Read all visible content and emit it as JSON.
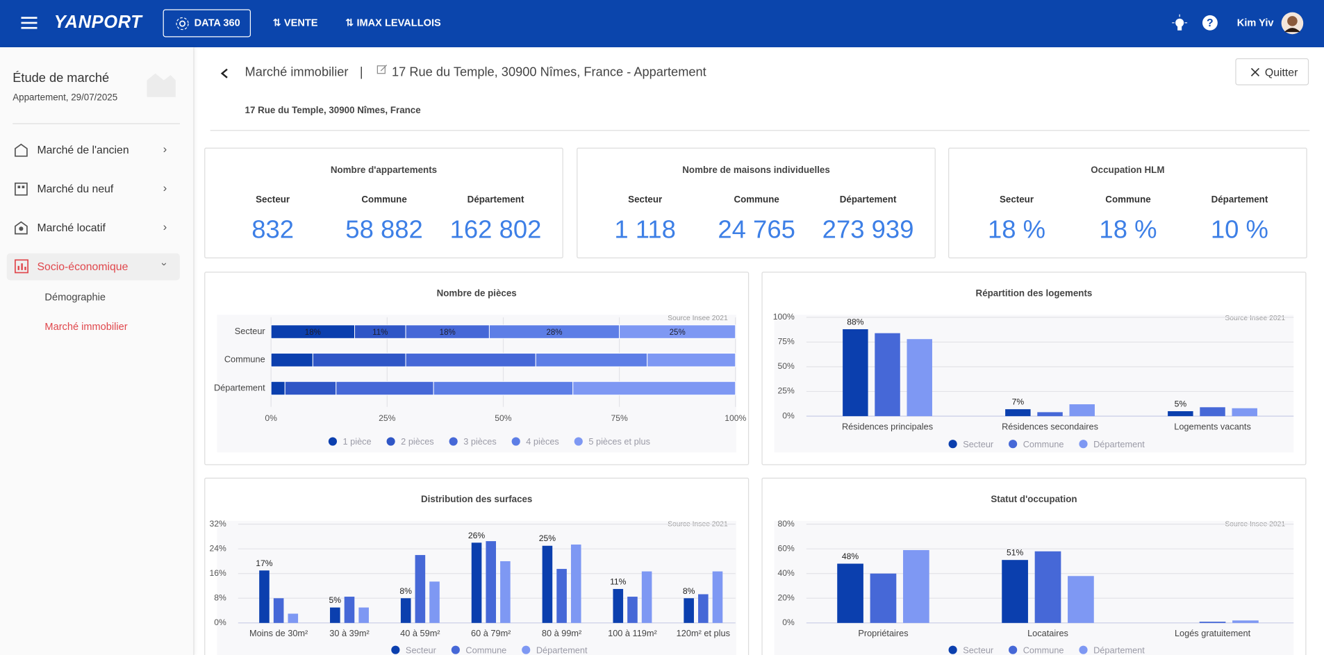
{
  "header": {
    "logo": "YANPORT",
    "buttons": [
      "DATA 360",
      "VENTE",
      "IMAX LEVALLOIS"
    ],
    "user": "Kim Yiv"
  },
  "sidebar": {
    "title": "Étude de marché",
    "subtitle": "Appartement, 29/07/2025",
    "menu": [
      "Marché de l'ancien",
      "Marché du neuf",
      "Marché locatif",
      "Socio-économique"
    ],
    "submenu": [
      "Démographie",
      "Marché immobilier"
    ]
  },
  "page": {
    "back_title": "Marché immobilier",
    "separator": "|",
    "title": "17 Rue du Temple, 30900 Nîmes, France - Appartement",
    "address": "17 Rue du Temple, 30900 Nîmes, France",
    "quit": "Quitter"
  },
  "stats": [
    {
      "title": "Nombre d'appartements",
      "columns": [
        "Secteur",
        "Commune",
        "Département"
      ],
      "values": [
        "832",
        "58 882",
        "162 802"
      ]
    },
    {
      "title": "Nombre de maisons individuelles",
      "columns": [
        "Secteur",
        "Commune",
        "Département"
      ],
      "values": [
        "1 118",
        "24 765",
        "273 939"
      ]
    },
    {
      "title": "Occupation HLM",
      "columns": [
        "Secteur",
        "Commune",
        "Département"
      ],
      "values": [
        "18 %",
        "18 %",
        "10 %"
      ]
    }
  ],
  "chart_data": [
    {
      "type": "bar",
      "orientation": "horizontal",
      "stacked": true,
      "title": "Nombre de pièces",
      "source": "Source Insee 2021",
      "categories": [
        "Secteur",
        "Commune",
        "Département"
      ],
      "xlim": [
        0,
        100
      ],
      "xticks": [
        {
          "value": 0,
          "label": "0%"
        },
        {
          "value": 25,
          "label": "25%"
        },
        {
          "value": 50,
          "label": "50%"
        },
        {
          "value": 75,
          "label": "75%"
        },
        {
          "value": 100,
          "label": "100%"
        }
      ],
      "grid": true,
      "series": [
        {
          "name": "1 pièce",
          "color": "#0b3fae",
          "values": [
            18,
            9,
            3
          ],
          "value_labels": [
            "18%",
            null,
            null
          ]
        },
        {
          "name": "2 pièces",
          "color": "#2f56c6",
          "values": [
            11,
            20,
            11
          ],
          "value_labels": [
            "11%",
            null,
            null
          ]
        },
        {
          "name": "3 pièces",
          "color": "#4668d7",
          "values": [
            18,
            28,
            21
          ],
          "value_labels": [
            "18%",
            null,
            null
          ]
        },
        {
          "name": "4 pièces",
          "color": "#5d7ee6",
          "values": [
            28,
            24,
            30
          ],
          "value_labels": [
            "28%",
            null,
            null
          ]
        },
        {
          "name": "5 pièces et plus",
          "color": "#7e98f3",
          "values": [
            25,
            19,
            35
          ],
          "value_labels": [
            "25%",
            null,
            null
          ]
        }
      ]
    },
    {
      "type": "bar",
      "title": "Répartition des logements",
      "source": "Source Insee 2021",
      "categories": [
        "Résidences principales",
        "Résidences secondaires",
        "Logements vacants"
      ],
      "ylim": [
        0,
        100
      ],
      "yticks": [
        {
          "value": 0,
          "label": "0%"
        },
        {
          "value": 25,
          "label": "25%"
        },
        {
          "value": 50,
          "label": "50%"
        },
        {
          "value": 75,
          "label": "75%"
        },
        {
          "value": 100,
          "label": "100%"
        }
      ],
      "grid": true,
      "series": [
        {
          "name": "Secteur",
          "color": "#0b3fae",
          "values": [
            88,
            7,
            5
          ],
          "value_labels": [
            "88%",
            "7%",
            "5%"
          ]
        },
        {
          "name": "Commune",
          "color": "#4668d7",
          "values": [
            84,
            4,
            9
          ]
        },
        {
          "name": "Département",
          "color": "#7e98f3",
          "values": [
            78,
            12,
            8
          ]
        }
      ]
    },
    {
      "type": "bar",
      "title": "Distribution des surfaces",
      "source": "Source Insee 2021",
      "categories": [
        "Moins de 30m²",
        "30 à 39m²",
        "40 à 59m²",
        "60 à 79m²",
        "80 à 99m²",
        "100 à 119m²",
        "120m² et plus"
      ],
      "ylim": [
        0,
        32
      ],
      "yticks": [
        {
          "value": 0,
          "label": "0%"
        },
        {
          "value": 8,
          "label": "8%"
        },
        {
          "value": 16,
          "label": "16%"
        },
        {
          "value": 24,
          "label": "24%"
        },
        {
          "value": 32,
          "label": "32%"
        }
      ],
      "grid": true,
      "series": [
        {
          "name": "Secteur",
          "color": "#0b3fae",
          "values": [
            17,
            5,
            8,
            26,
            25,
            11,
            8
          ],
          "value_labels": [
            "17%",
            "5%",
            "8%",
            "26%",
            "25%",
            "11%",
            "8%"
          ]
        },
        {
          "name": "Commune",
          "color": "#4668d7",
          "values": [
            8,
            8.5,
            22,
            26.5,
            17.5,
            8.5,
            9.3
          ]
        },
        {
          "name": "Département",
          "color": "#7e98f3",
          "values": [
            3,
            5,
            13.4,
            20,
            25.4,
            16.7,
            16.7
          ]
        }
      ]
    },
    {
      "type": "bar",
      "title": "Statut d'occupation",
      "source": "Source Insee 2021",
      "categories": [
        "Propriétaires",
        "Locataires",
        "Logés gratuitement"
      ],
      "ylim": [
        0,
        80
      ],
      "yticks": [
        {
          "value": 0,
          "label": "0%"
        },
        {
          "value": 20,
          "label": "20%"
        },
        {
          "value": 40,
          "label": "40%"
        },
        {
          "value": 60,
          "label": "60%"
        },
        {
          "value": 80,
          "label": "80%"
        }
      ],
      "grid": true,
      "series": [
        {
          "name": "Secteur",
          "color": "#0b3fae",
          "values": [
            48,
            51,
            0
          ],
          "value_labels": [
            "48%",
            "51%",
            null
          ]
        },
        {
          "name": "Commune",
          "color": "#4668d7",
          "values": [
            40,
            58,
            1
          ]
        },
        {
          "name": "Département",
          "color": "#7e98f3",
          "values": [
            59,
            38,
            2
          ]
        }
      ]
    }
  ]
}
